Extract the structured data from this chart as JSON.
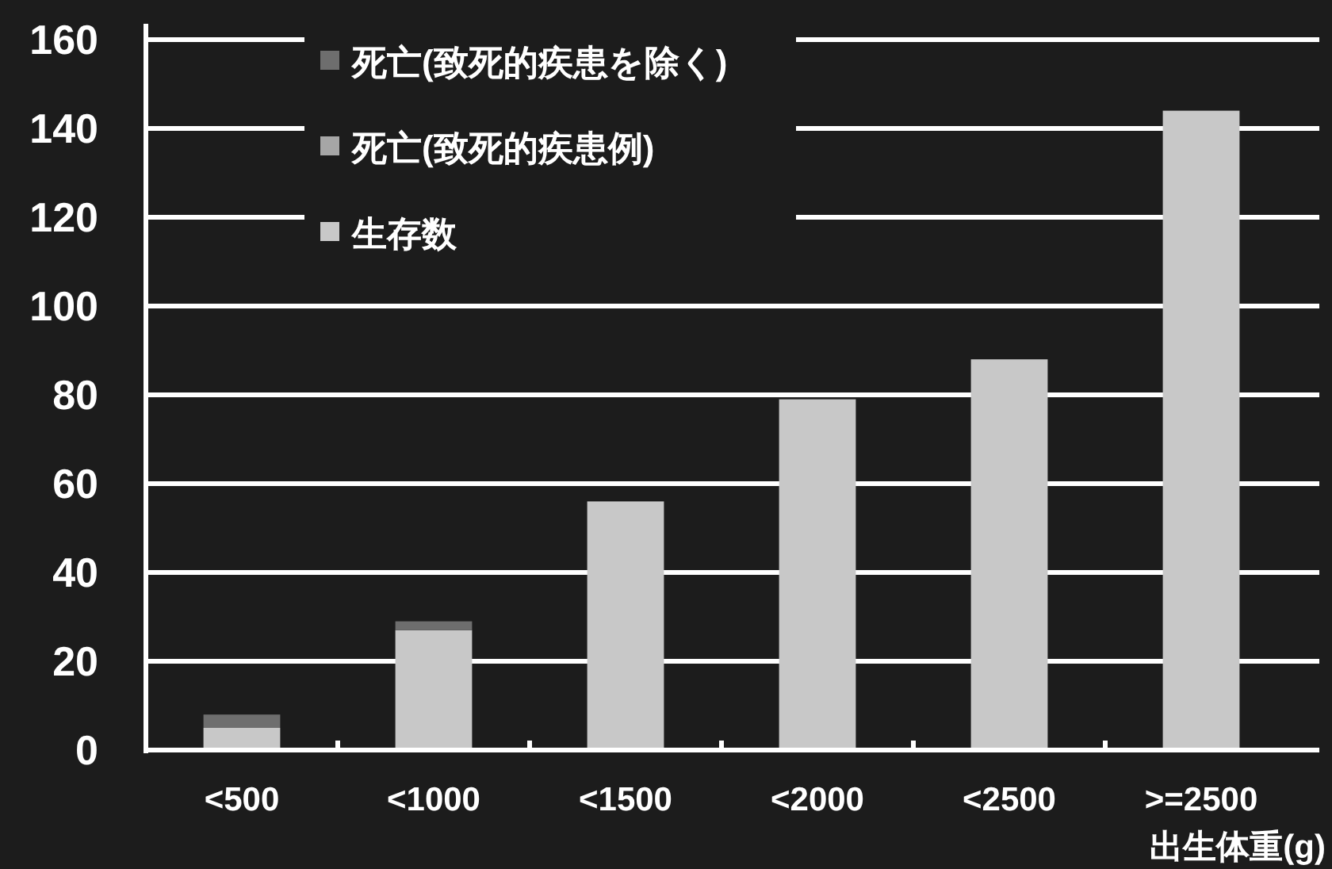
{
  "chart_data": {
    "type": "bar",
    "stacked": true,
    "xlabel": "出生体重(g)",
    "categories": [
      "<500",
      "<1000",
      "<1500",
      "<2000",
      "<2500",
      ">=2500"
    ],
    "series": [
      {
        "name": "生存数",
        "color": "#c8c8c8",
        "values": [
          5,
          27,
          56,
          79,
          88,
          144
        ]
      },
      {
        "name": "死亡(致死的疾患例)",
        "color": "#a6a6a6",
        "values": [
          0,
          0,
          0,
          0,
          0,
          0
        ]
      },
      {
        "name": "死亡(致死的疾患を除く)",
        "color": "#6e6e6e",
        "values": [
          3,
          2,
          0,
          0,
          0,
          0
        ]
      }
    ],
    "ylim": [
      0,
      160
    ],
    "yticks": [
      0,
      20,
      40,
      60,
      80,
      100,
      120,
      140,
      160
    ],
    "grid": "y",
    "legend": "top left"
  }
}
